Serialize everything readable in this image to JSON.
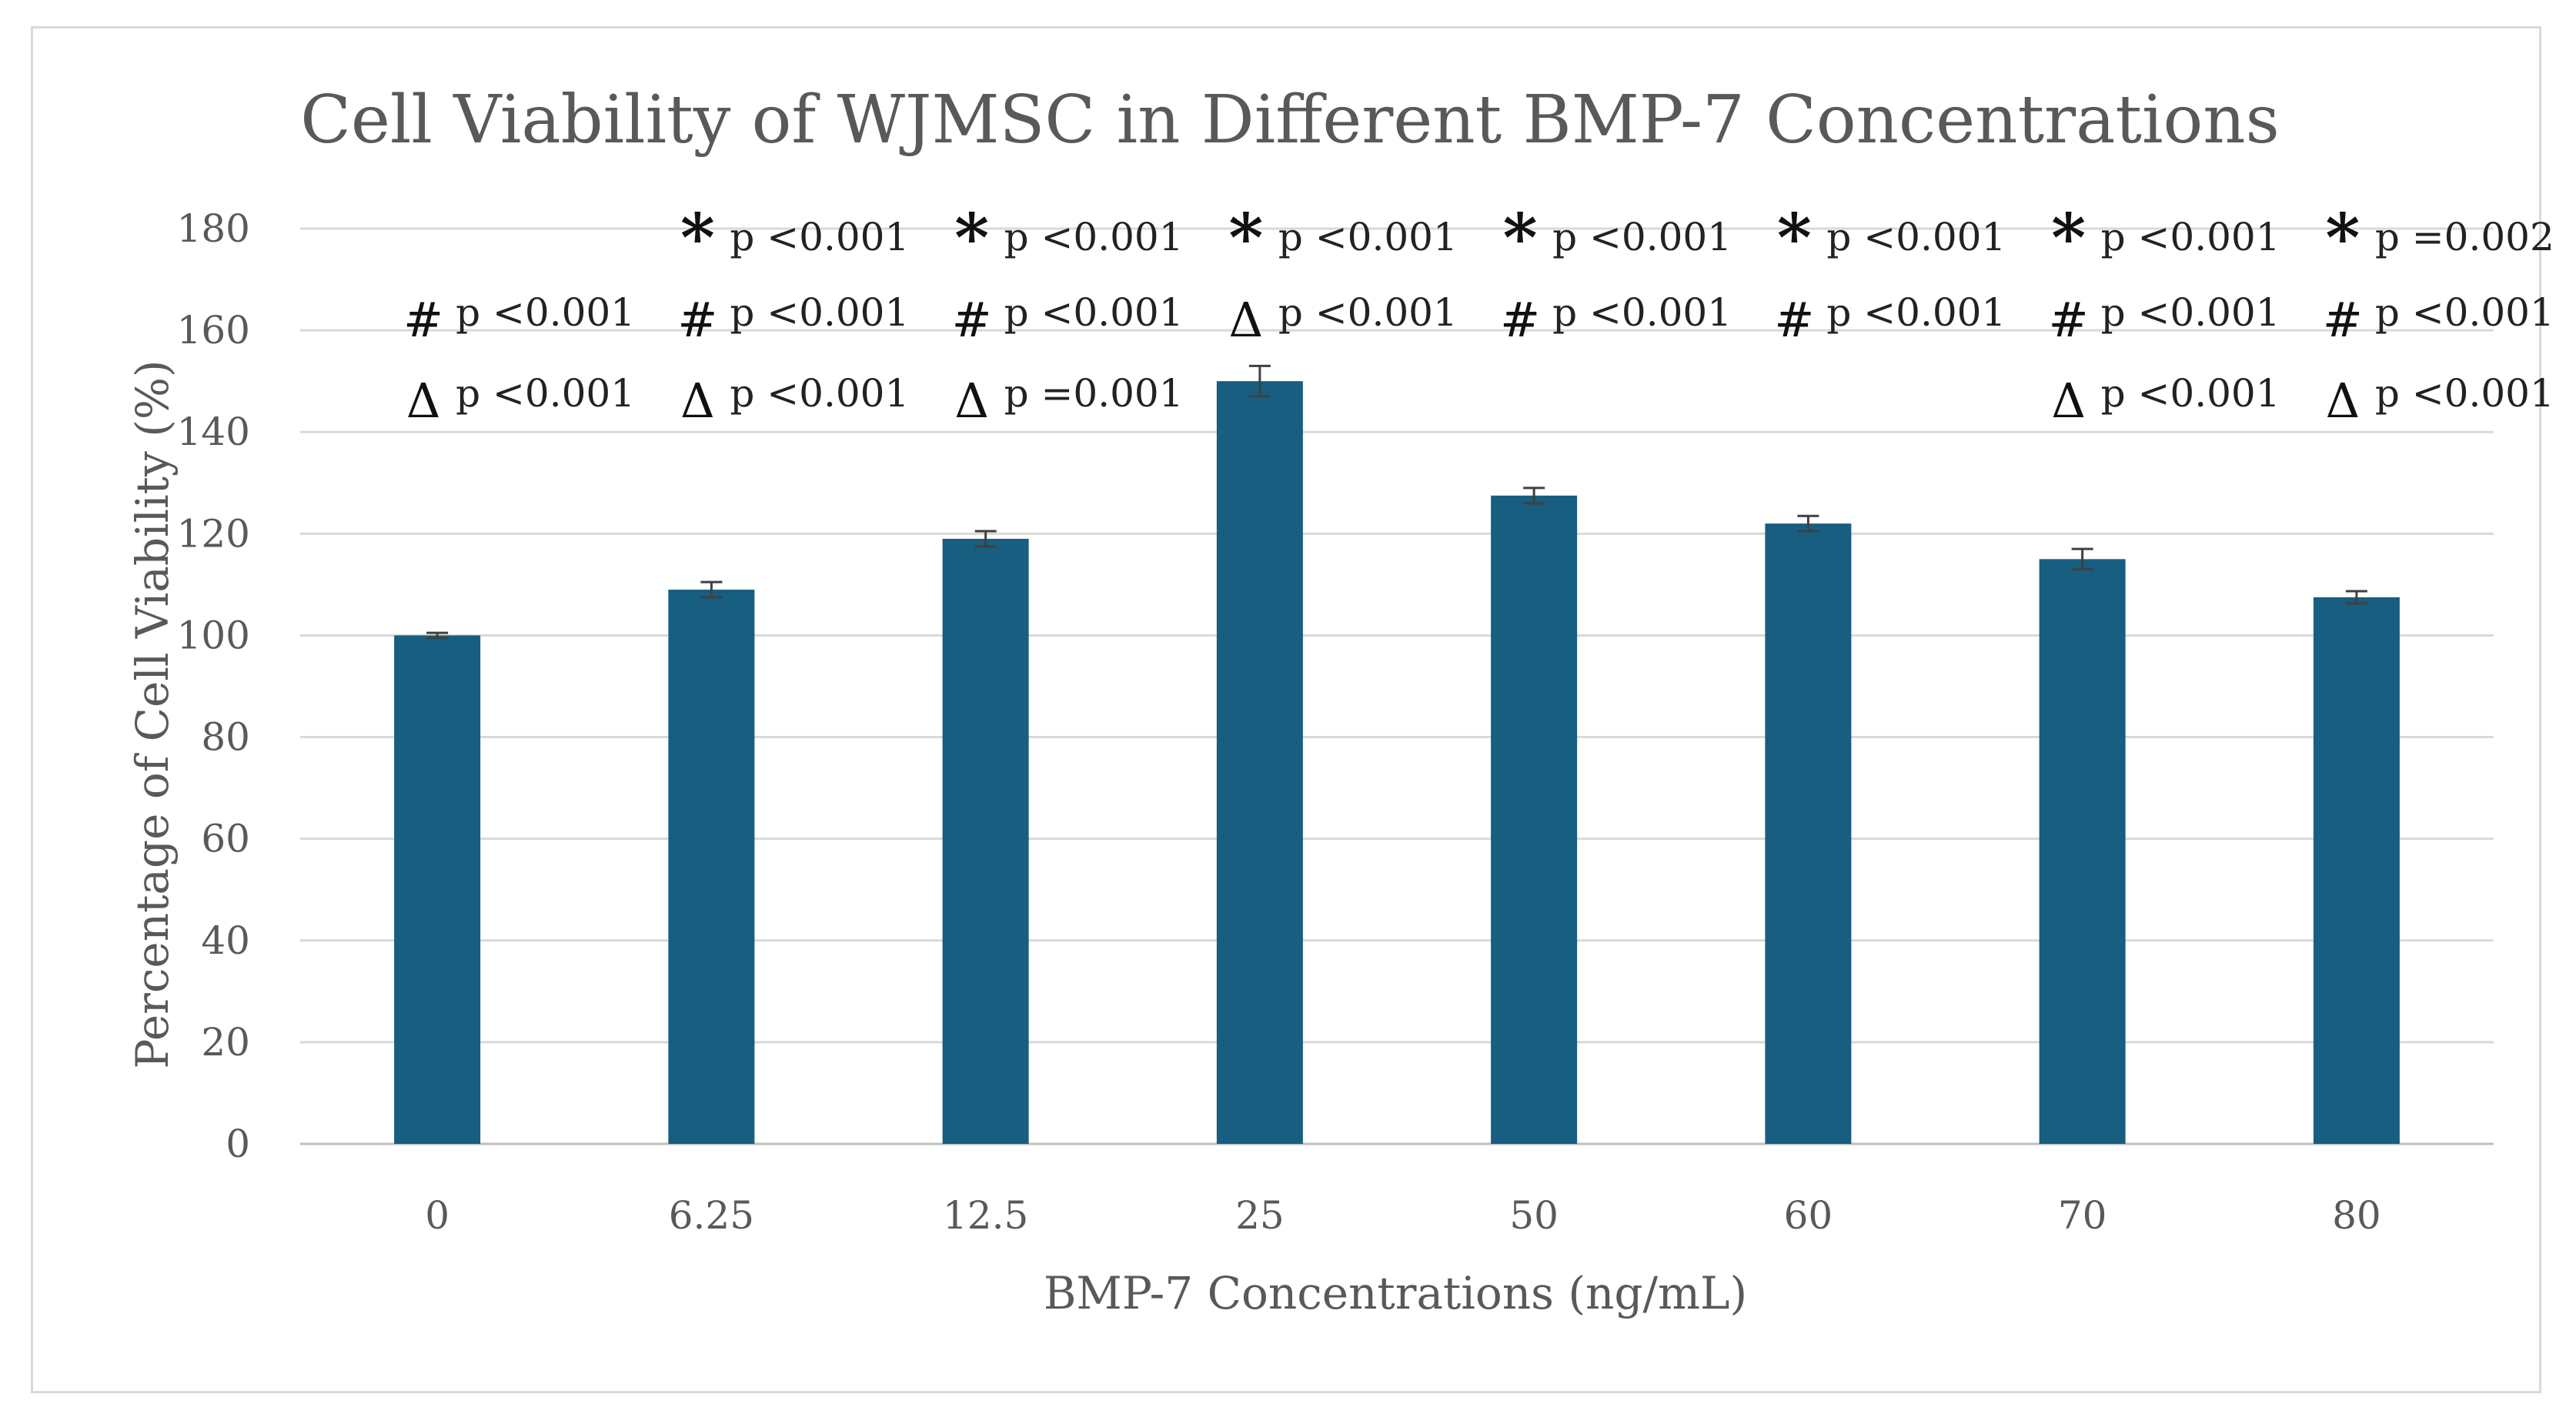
{
  "chart_data": {
    "type": "bar",
    "title": "Cell Viability of WJMSC in Different BMP-7 Concentrations",
    "xlabel": "BMP-7 Concentrations (ng/mL)",
    "ylabel": "Percentage of Cell Viability (%)",
    "ylim": [
      0,
      180
    ],
    "yticks": [
      0,
      20,
      40,
      60,
      80,
      100,
      120,
      140,
      160,
      180
    ],
    "grid": true,
    "categories": [
      "0",
      "6.25",
      "12.5",
      "25",
      "50",
      "60",
      "70",
      "80"
    ],
    "values": [
      100,
      109,
      119,
      150,
      127.5,
      122,
      115,
      107.5
    ],
    "errors": [
      0.5,
      1.5,
      1.5,
      3,
      1.5,
      1.5,
      2,
      1.2
    ],
    "bar_color": "#175e80",
    "error_bar_color": "#404040",
    "annotations": [
      {
        "category": "0",
        "rows": [
          null,
          {
            "symbol": "#",
            "text": "p <0.001"
          },
          {
            "symbol": "Δ",
            "text": "p <0.001"
          }
        ]
      },
      {
        "category": "6.25",
        "rows": [
          {
            "symbol": "*",
            "text": "p <0.001"
          },
          {
            "symbol": "#",
            "text": "p <0.001"
          },
          {
            "symbol": "Δ",
            "text": "p <0.001"
          }
        ]
      },
      {
        "category": "12.5",
        "rows": [
          {
            "symbol": "*",
            "text": "p <0.001"
          },
          {
            "symbol": "#",
            "text": "p <0.001"
          },
          {
            "symbol": "Δ",
            "text": "p =0.001"
          }
        ]
      },
      {
        "category": "25",
        "rows": [
          {
            "symbol": "*",
            "text": "p <0.001"
          },
          {
            "symbol": "Δ",
            "text": "p <0.001"
          },
          null
        ]
      },
      {
        "category": "50",
        "rows": [
          {
            "symbol": "*",
            "text": "p <0.001"
          },
          {
            "symbol": "#",
            "text": "p <0.001"
          },
          null
        ]
      },
      {
        "category": "60",
        "rows": [
          {
            "symbol": "*",
            "text": "p <0.001"
          },
          {
            "symbol": "#",
            "text": "p <0.001"
          },
          null
        ]
      },
      {
        "category": "70",
        "rows": [
          {
            "symbol": "*",
            "text": "p <0.001"
          },
          {
            "symbol": "#",
            "text": "p <0.001"
          },
          {
            "symbol": "Δ",
            "text": "p <0.001"
          }
        ]
      },
      {
        "category": "80",
        "rows": [
          {
            "symbol": "*",
            "text": "p =0.002"
          },
          {
            "symbol": "#",
            "text": "p <0.001"
          },
          {
            "symbol": "Δ",
            "text": "p <0.001"
          }
        ]
      }
    ]
  }
}
